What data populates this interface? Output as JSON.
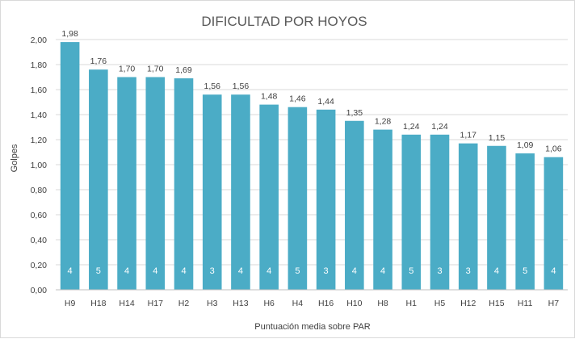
{
  "chart_data": {
    "type": "bar",
    "title": "DIFICULTAD POR HOYOS",
    "xlabel": "Puntuación media sobre PAR",
    "ylabel": "Golpes",
    "ylim": [
      0,
      2
    ],
    "ytick_step": 0.2,
    "yticks": [
      "0,00",
      "0,20",
      "0,40",
      "0,60",
      "0,80",
      "1,00",
      "1,20",
      "1,40",
      "1,60",
      "1,80",
      "2,00"
    ],
    "grid": true,
    "bar_color": "#4bacc6",
    "categories": [
      "H9",
      "H18",
      "H14",
      "H17",
      "H2",
      "H3",
      "H13",
      "H6",
      "H4",
      "H16",
      "H10",
      "H8",
      "H1",
      "H5",
      "H12",
      "H15",
      "H11",
      "H7"
    ],
    "values": [
      1.98,
      1.76,
      1.7,
      1.7,
      1.69,
      1.56,
      1.56,
      1.48,
      1.46,
      1.44,
      1.35,
      1.28,
      1.24,
      1.24,
      1.17,
      1.15,
      1.09,
      1.06
    ],
    "value_labels": [
      "1,98",
      "1,76",
      "1,70",
      "1,70",
      "1,69",
      "1,56",
      "1,56",
      "1,48",
      "1,46",
      "1,44",
      "1,35",
      "1,28",
      "1,24",
      "1,24",
      "1,17",
      "1,15",
      "1,09",
      "1,06"
    ],
    "par": [
      "4",
      "5",
      "4",
      "4",
      "4",
      "3",
      "4",
      "4",
      "5",
      "3",
      "4",
      "4",
      "5",
      "3",
      "3",
      "4",
      "5",
      "4"
    ]
  }
}
